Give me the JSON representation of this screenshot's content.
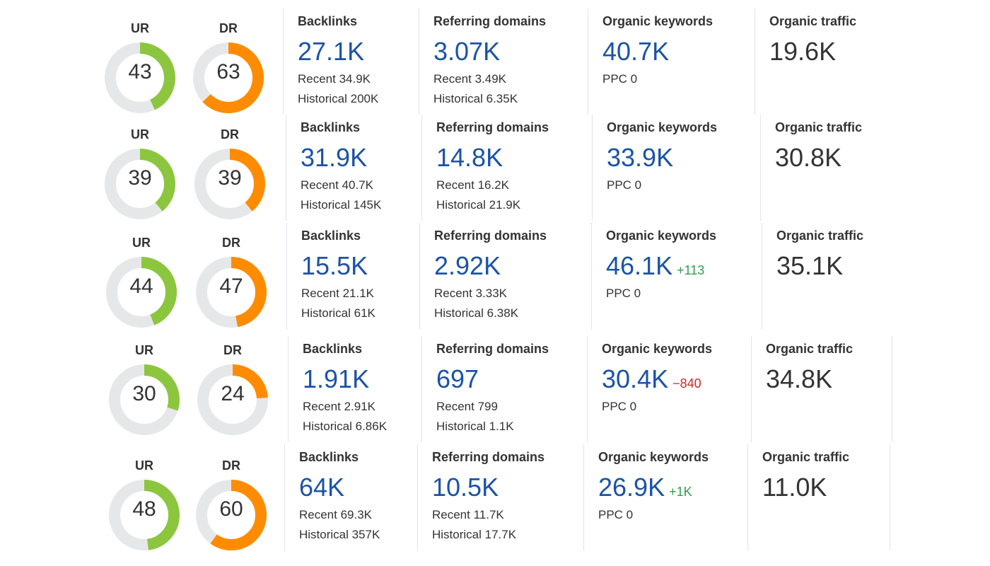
{
  "colors": {
    "ur_arc": "#8cc63f",
    "dr_arc": "#ff8c00",
    "track": "#e6e7e9",
    "link_blue": "#1a53a8",
    "positive": "#2e9e4e",
    "negative": "#d62626"
  },
  "labels": {
    "ur": "UR",
    "dr": "DR",
    "backlinks": "Backlinks",
    "referring_domains": "Referring domains",
    "organic_keywords": "Organic keywords",
    "organic_traffic": "Organic traffic"
  },
  "rows": [
    {
      "ur": "43",
      "dr": "63",
      "backlinks": {
        "value": "27.1K",
        "recent": "Recent 34.9K",
        "historical": "Historical 200K"
      },
      "referring_domains": {
        "value": "3.07K",
        "recent": "Recent 3.49K",
        "historical": "Historical 6.35K"
      },
      "organic_keywords": {
        "value": "40.7K",
        "delta": "",
        "ppc": "PPC 0"
      },
      "organic_traffic": {
        "value": "19.6K"
      }
    },
    {
      "ur": "39",
      "dr": "39",
      "backlinks": {
        "value": "31.9K",
        "recent": "Recent 40.7K",
        "historical": "Historical 145K"
      },
      "referring_domains": {
        "value": "14.8K",
        "recent": "Recent 16.2K",
        "historical": "Historical 21.9K"
      },
      "organic_keywords": {
        "value": "33.9K",
        "delta": "",
        "ppc": "PPC 0"
      },
      "organic_traffic": {
        "value": "30.8K"
      }
    },
    {
      "ur": "44",
      "dr": "47",
      "backlinks": {
        "value": "15.5K",
        "recent": "Recent 21.1K",
        "historical": "Historical 61K"
      },
      "referring_domains": {
        "value": "2.92K",
        "recent": "Recent 3.33K",
        "historical": "Historical 6.38K"
      },
      "organic_keywords": {
        "value": "46.1K",
        "delta": "+113",
        "ppc": "PPC 0"
      },
      "organic_traffic": {
        "value": "35.1K"
      }
    },
    {
      "ur": "30",
      "dr": "24",
      "backlinks": {
        "value": "1.91K",
        "recent": "Recent 2.91K",
        "historical": "Historical 6.86K"
      },
      "referring_domains": {
        "value": "697",
        "recent": "Recent 799",
        "historical": "Historical 1.1K"
      },
      "organic_keywords": {
        "value": "30.4K",
        "delta": "−840",
        "ppc": "PPC 0"
      },
      "organic_traffic": {
        "value": "34.8K"
      }
    },
    {
      "ur": "48",
      "dr": "60",
      "backlinks": {
        "value": "64K",
        "recent": "Recent 69.3K",
        "historical": "Historical 357K"
      },
      "referring_domains": {
        "value": "10.5K",
        "recent": "Recent 11.7K",
        "historical": "Historical 17.7K"
      },
      "organic_keywords": {
        "value": "26.9K",
        "delta": "+1K",
        "ppc": "PPC 0"
      },
      "organic_traffic": {
        "value": "11.0K"
      }
    }
  ]
}
